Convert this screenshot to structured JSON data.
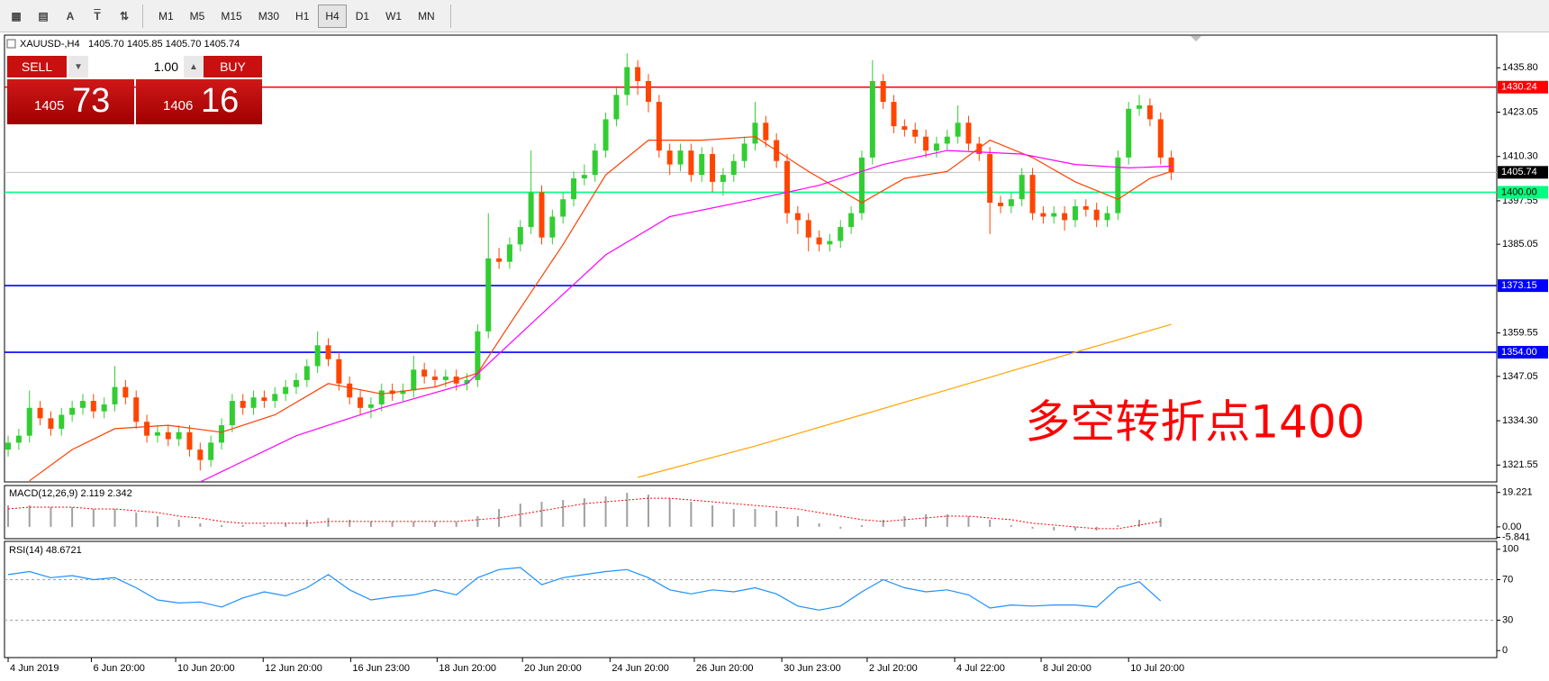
{
  "ui": {
    "timeframes": [
      "M1",
      "M5",
      "M15",
      "M30",
      "H1",
      "H4",
      "D1",
      "W1",
      "MN"
    ],
    "active": "H4",
    "tool_labels": [
      "A",
      "T"
    ],
    "trade": {
      "sell": "SELL",
      "buy": "BUY",
      "lots": "1.00",
      "bid_small": "1405",
      "bid_big": "73",
      "ask_small": "1406",
      "ask_big": "16"
    }
  },
  "chart_data": {
    "type": "candlestick",
    "title": "XAUUSD-,H4",
    "quote": "1405.70 1405.85 1405.70 1405.74",
    "annotation": "多空转折点1400",
    "up_color": "#32cd32",
    "down_color": "#ff4500",
    "open": [
      1326,
      1328,
      1330,
      1338,
      1335,
      1332,
      1336,
      1338,
      1340,
      1337,
      1339,
      1344,
      1341,
      1334,
      1330,
      1331,
      1329,
      1331,
      1326,
      1323,
      1328,
      1333,
      1340,
      1338,
      1341,
      1340,
      1342,
      1344,
      1346,
      1350,
      1356,
      1352,
      1345,
      1341,
      1338,
      1339,
      1343,
      1342,
      1343,
      1349,
      1347,
      1346,
      1347,
      1345,
      1346,
      1360,
      1381,
      1380,
      1385,
      1390,
      1400,
      1387,
      1393,
      1398,
      1404,
      1405,
      1412,
      1421,
      1428,
      1436,
      1432,
      1426,
      1412,
      1408,
      1412,
      1405,
      1411,
      1403,
      1405,
      1409,
      1414,
      1420,
      1415,
      1409,
      1394,
      1392,
      1387,
      1385,
      1386,
      1390,
      1394,
      1410,
      1432,
      1426,
      1419,
      1418,
      1416,
      1412,
      1414,
      1416,
      1420,
      1414,
      1411,
      1397,
      1396,
      1398,
      1405,
      1394,
      1393,
      1394,
      1392,
      1396,
      1395,
      1392,
      1394,
      1410,
      1424,
      1425,
      1421,
      1410
    ],
    "high": [
      1330,
      1332,
      1343,
      1340,
      1337,
      1338,
      1340,
      1342,
      1342,
      1341,
      1350,
      1346,
      1343,
      1336,
      1333,
      1333,
      1333,
      1333,
      1328,
      1330,
      1335,
      1342,
      1342,
      1343,
      1343,
      1344,
      1346,
      1348,
      1352,
      1360,
      1358,
      1354,
      1347,
      1343,
      1341,
      1345,
      1345,
      1345,
      1353,
      1351,
      1349,
      1349,
      1349,
      1348,
      1362,
      1394,
      1384,
      1387,
      1392,
      1412,
      1402,
      1395,
      1400,
      1406,
      1408,
      1414,
      1423,
      1430,
      1440,
      1438,
      1434,
      1428,
      1414,
      1414,
      1414,
      1413,
      1413,
      1407,
      1411,
      1416,
      1426,
      1422,
      1417,
      1411,
      1396,
      1394,
      1389,
      1388,
      1392,
      1396,
      1412,
      1438,
      1434,
      1428,
      1421,
      1420,
      1418,
      1416,
      1418,
      1425,
      1422,
      1416,
      1413,
      1399,
      1400,
      1407,
      1407,
      1396,
      1396,
      1396,
      1398,
      1398,
      1397,
      1396,
      1412,
      1426,
      1428,
      1427,
      1423,
      1412
    ],
    "low": [
      1324,
      1326,
      1328,
      1333,
      1330,
      1330,
      1334,
      1336,
      1335,
      1335,
      1337,
      1339,
      1332,
      1328,
      1328,
      1327,
      1327,
      1324,
      1320,
      1321,
      1326,
      1331,
      1336,
      1336,
      1338,
      1338,
      1340,
      1342,
      1344,
      1348,
      1350,
      1343,
      1339,
      1336,
      1335,
      1337,
      1340,
      1340,
      1341,
      1345,
      1344,
      1344,
      1343,
      1343,
      1344,
      1358,
      1378,
      1378,
      1383,
      1388,
      1385,
      1385,
      1391,
      1396,
      1402,
      1403,
      1410,
      1419,
      1425,
      1428,
      1423,
      1410,
      1405,
      1406,
      1403,
      1403,
      1400,
      1399,
      1403,
      1407,
      1412,
      1413,
      1407,
      1391,
      1388,
      1383,
      1383,
      1383,
      1384,
      1388,
      1392,
      1408,
      1424,
      1417,
      1416,
      1414,
      1410,
      1410,
      1412,
      1414,
      1412,
      1409,
      1388,
      1394,
      1394,
      1396,
      1392,
      1391,
      1391,
      1389,
      1390,
      1393,
      1390,
      1390,
      1392,
      1408,
      1422,
      1419,
      1408,
      1403.5
    ],
    "close": [
      1328,
      1330,
      1338,
      1335,
      1332,
      1336,
      1338,
      1340,
      1337,
      1339,
      1344,
      1341,
      1334,
      1330,
      1331,
      1329,
      1331,
      1326,
      1323,
      1328,
      1333,
      1340,
      1338,
      1341,
      1340,
      1342,
      1344,
      1346,
      1350,
      1356,
      1352,
      1345,
      1341,
      1338,
      1339,
      1343,
      1342,
      1343,
      1349,
      1347,
      1346,
      1347,
      1345,
      1346,
      1360,
      1381,
      1380,
      1385,
      1390,
      1400,
      1387,
      1393,
      1398,
      1404,
      1405,
      1412,
      1421,
      1428,
      1436,
      1432,
      1426,
      1412,
      1408,
      1412,
      1405,
      1411,
      1403,
      1405,
      1409,
      1414,
      1420,
      1415,
      1409,
      1394,
      1392,
      1387,
      1385,
      1386,
      1390,
      1394,
      1410,
      1432,
      1426,
      1419,
      1418,
      1416,
      1412,
      1414,
      1416,
      1420,
      1414,
      1411,
      1397,
      1396,
      1398,
      1405,
      1394,
      1393,
      1394,
      1392,
      1396,
      1395,
      1392,
      1394,
      1410,
      1424,
      1425,
      1421,
      1410,
      1405.74
    ],
    "overlays": [
      {
        "color": "#ff4000",
        "x": [
          2,
          6,
          10,
          15,
          20,
          25,
          30,
          35,
          40,
          44,
          47,
          52,
          56,
          60,
          65,
          70,
          75,
          80,
          84,
          88,
          92,
          96,
          100,
          104,
          107,
          109
        ],
        "values": [
          1317,
          1326,
          1332,
          1333,
          1331,
          1336,
          1345,
          1342,
          1344,
          1348,
          1362,
          1385,
          1405,
          1415,
          1415,
          1416,
          1406,
          1397,
          1404,
          1406,
          1415,
          1410,
          1403,
          1398,
          1404,
          1406
        ]
      },
      {
        "color": "#ff00ff",
        "x": [
          18,
          27,
          35,
          43,
          50,
          56,
          62,
          70,
          76,
          82,
          88,
          95,
          100,
          105,
          109
        ],
        "values": [
          1316.7,
          1330,
          1338,
          1345,
          1365,
          1382,
          1393,
          1398,
          1402,
          1408,
          1412,
          1411,
          1408,
          1407,
          1407.5
        ]
      },
      {
        "color": "#ffa500",
        "x": [
          59,
          70,
          80,
          90,
          100,
          109
        ],
        "values": [
          1318,
          1327,
          1336,
          1345,
          1354,
          1362
        ]
      }
    ],
    "hlines": [
      {
        "value": 1430.24,
        "color": "#ff0000",
        "text_color": "#ffffff"
      },
      {
        "value": 1405.74,
        "color": "#000000",
        "text_color": "#ffffff",
        "line_color": "#c0c0c0"
      },
      {
        "value": 1400,
        "label": "1400.00",
        "color": "#00ff7f",
        "text_color": "#000000"
      },
      {
        "value": 1373.15,
        "color": "#0000ff",
        "text_color": "#ffffff"
      },
      {
        "value": 1354,
        "label": "1354.00",
        "color": "#0000ff",
        "text_color": "#ffffff"
      }
    ],
    "xlim": [
      -0.34,
      139.5
    ],
    "ylim": [
      1316.7,
      1445.2
    ],
    "yticks": [
      {
        "value": 1435.8,
        "label": "1435.80"
      },
      1423.05,
      {
        "value": 1410.3,
        "label": "1410.30"
      },
      1397.55,
      1385.05,
      1359.55,
      1347.05,
      {
        "value": 1334.3,
        "label": "1334.30"
      },
      1321.55
    ],
    "xticks": [
      {
        "value": 0,
        "label": "4 Jun 2019"
      },
      {
        "value": 7.8,
        "label": "6 Jun 20:00"
      },
      {
        "value": 15.7,
        "label": "10 Jun 20:00"
      },
      {
        "value": 23.9,
        "label": "12 Jun 20:00"
      },
      {
        "value": 32.1,
        "label": "16 Jun 23:00"
      },
      {
        "value": 40.2,
        "label": "18 Jun 20:00"
      },
      {
        "value": 48.2,
        "label": "20 Jun 20:00"
      },
      {
        "value": 56.4,
        "label": "24 Jun 20:00"
      },
      {
        "value": 64.3,
        "label": "26 Jun 20:00"
      },
      {
        "value": 72.5,
        "label": "30 Jun 23:00"
      },
      {
        "value": 80.5,
        "label": "2 Jul 20:00"
      },
      {
        "value": 88.7,
        "label": "4 Jul 22:00"
      },
      {
        "value": 96.8,
        "label": "8 Jul 20:00"
      },
      {
        "value": 105,
        "label": "10 Jul 20:00"
      }
    ],
    "macd": {
      "label": "MACD(12,26,9) 2.119 2.342",
      "ylim": [
        -6.6,
        23.1
      ],
      "yticks": [
        19.221,
        {
          "value": 0,
          "label": "0.00"
        },
        -5.841
      ],
      "hist_color": "#a0a0a0",
      "signal_color": "#ff0000",
      "x": [
        0,
        2,
        4,
        6,
        8,
        10,
        12,
        14,
        16,
        18,
        20,
        22,
        24,
        26,
        28,
        30,
        32,
        34,
        36,
        38,
        40,
        42,
        44,
        46,
        48,
        50,
        52,
        54,
        56,
        58,
        60,
        62,
        64,
        66,
        68,
        70,
        72,
        74,
        76,
        78,
        80,
        82,
        84,
        86,
        88,
        90,
        92,
        94,
        96,
        98,
        100,
        102,
        104,
        106,
        108
      ],
      "histogram": [
        12,
        12,
        11,
        11,
        10,
        10,
        8,
        6,
        4,
        2,
        1,
        1,
        1,
        2,
        4,
        5,
        4,
        3,
        3,
        3,
        3,
        3,
        6,
        10,
        13,
        14,
        15,
        16,
        17,
        19,
        18,
        16,
        14,
        12,
        10,
        10,
        9,
        6,
        2,
        -1,
        1,
        4,
        6,
        7,
        7,
        6,
        4,
        1,
        -1,
        -2,
        -2,
        -2,
        1,
        4,
        5
      ],
      "signal": [
        10,
        11,
        11,
        11,
        10,
        10,
        9,
        8,
        6,
        5,
        3,
        2,
        2,
        2,
        2,
        3,
        3,
        3,
        3,
        3,
        3,
        3,
        4,
        5,
        7,
        9,
        11,
        13,
        14,
        15,
        16,
        16,
        15,
        14,
        13,
        12,
        11,
        10,
        8,
        6,
        4,
        3,
        4,
        5,
        6,
        6,
        5,
        4,
        2,
        1,
        0,
        -1,
        -1,
        1,
        3
      ]
    },
    "rsi": {
      "label": "RSI(14) 48.6721",
      "ylim": [
        -6.9,
        107.8
      ],
      "yticks": [
        100,
        70,
        30,
        0
      ],
      "levels": [
        70,
        30
      ],
      "color": "#1e90ff",
      "x": [
        0,
        2,
        4,
        6,
        8,
        10,
        12,
        14,
        16,
        18,
        20,
        22,
        24,
        26,
        28,
        30,
        32,
        34,
        36,
        38,
        40,
        42,
        44,
        46,
        48,
        50,
        52,
        54,
        56,
        58,
        60,
        62,
        64,
        66,
        68,
        70,
        72,
        74,
        76,
        78,
        80,
        82,
        84,
        86,
        88,
        90,
        92,
        94,
        96,
        98,
        100,
        102,
        104,
        106,
        108
      ],
      "values": [
        75,
        78,
        72,
        74,
        70,
        72,
        62,
        50,
        47,
        48,
        43,
        52,
        58,
        54,
        62,
        75,
        60,
        50,
        53,
        55,
        60,
        55,
        72,
        80,
        82,
        65,
        72,
        75,
        78,
        80,
        72,
        60,
        56,
        60,
        58,
        62,
        56,
        44,
        40,
        44,
        58,
        70,
        62,
        58,
        60,
        55,
        42,
        45,
        44,
        45,
        45,
        43,
        62,
        68,
        49
      ]
    }
  }
}
